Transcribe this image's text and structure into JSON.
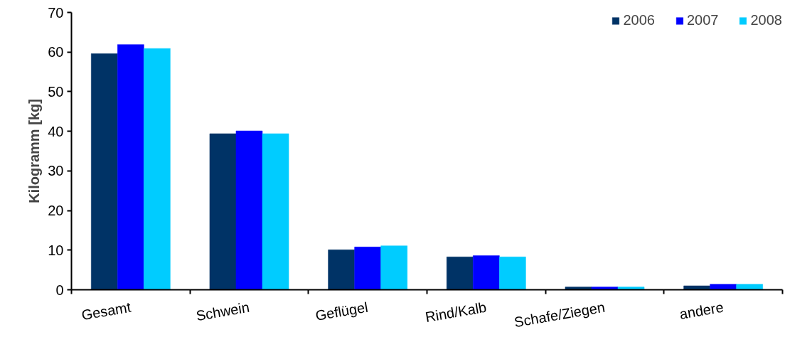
{
  "chart_data": {
    "type": "bar",
    "ylabel": "Kilogramm [kg]",
    "categories": [
      "Gesamt",
      "Schwein",
      "Geflügel",
      "Rind/Kalb",
      "Schafe/Ziegen",
      "andere"
    ],
    "series": [
      {
        "name": "2006",
        "color": "#003366",
        "values": [
          59.6,
          39.4,
          10.1,
          8.3,
          0.7,
          1.0
        ]
      },
      {
        "name": "2007",
        "color": "#0000ff",
        "values": [
          61.9,
          40.1,
          10.8,
          8.6,
          0.7,
          1.4
        ]
      },
      {
        "name": "2008",
        "color": "#00ccff",
        "values": [
          60.9,
          39.4,
          11.1,
          8.3,
          0.7,
          1.4
        ]
      }
    ],
    "ylim": [
      0,
      70
    ],
    "yticks": [
      0,
      10,
      20,
      30,
      40,
      50,
      60,
      70
    ],
    "grid": false,
    "legend": "top right"
  }
}
